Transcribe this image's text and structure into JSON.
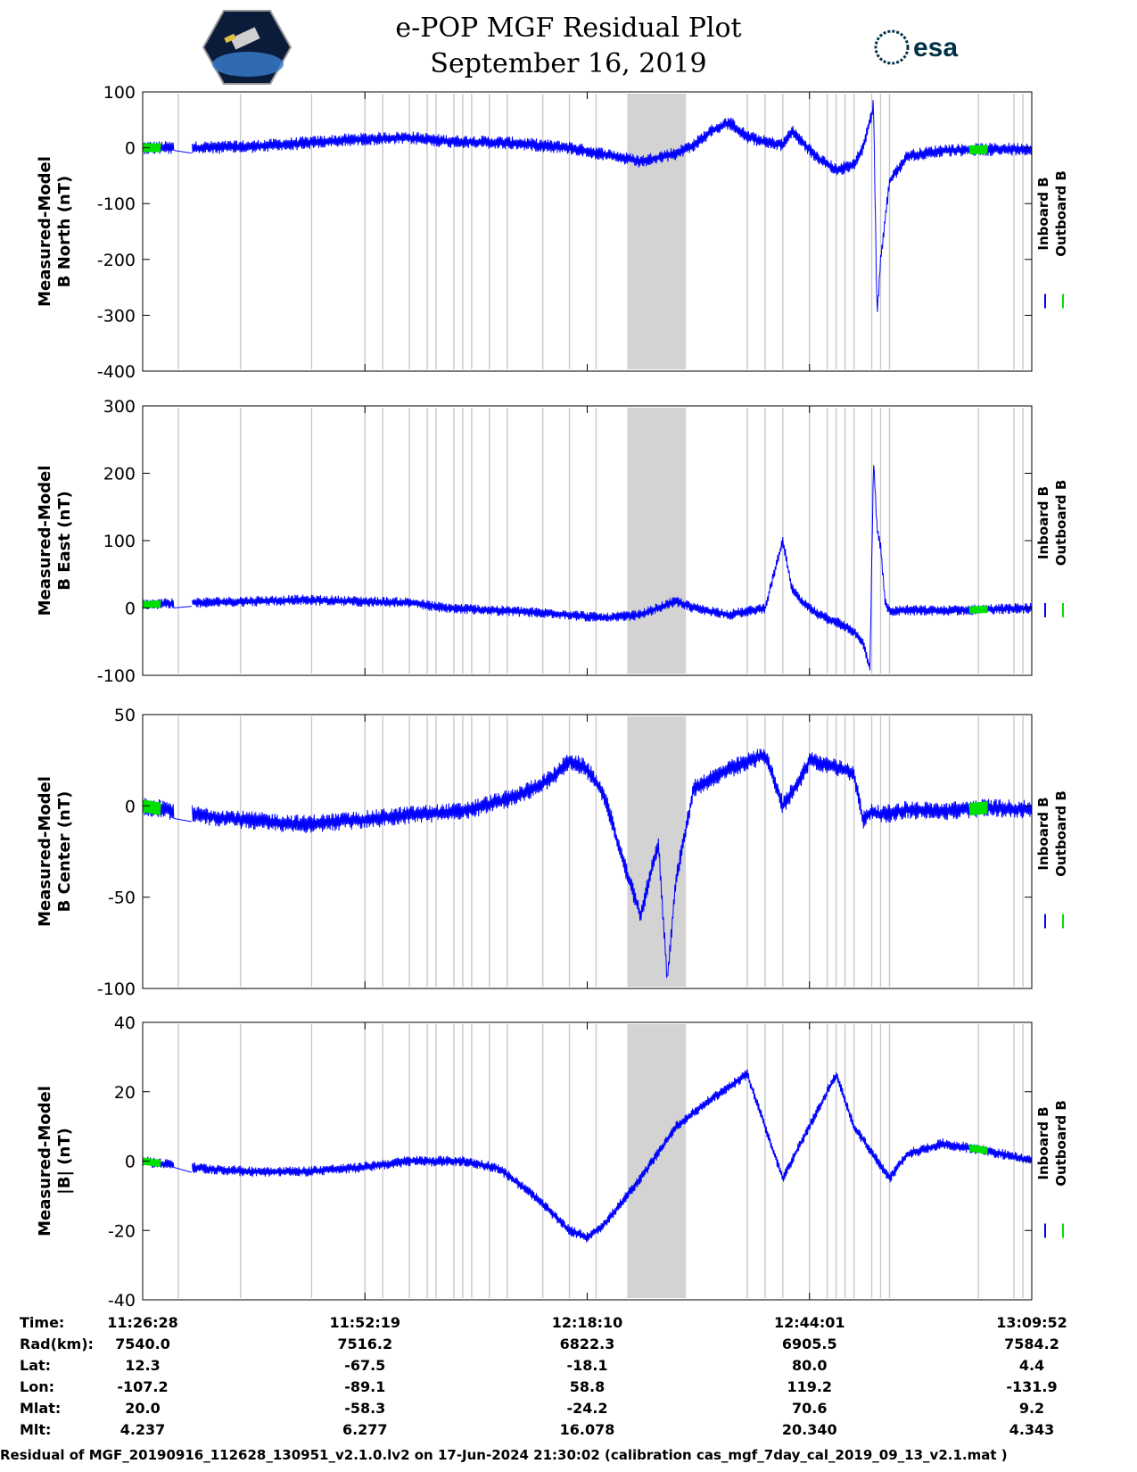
{
  "title": "e-POP MGF Residual Plot",
  "subtitle": "September 16, 2019",
  "logos": {
    "left": "cassiope-mission-logo",
    "right_text": "esa"
  },
  "legend": {
    "inboard": "Inboard B",
    "outboard": "Outboard B"
  },
  "colors": {
    "inboard": "#0000ff",
    "outboard": "#00e000",
    "shade": "#d3d3d3",
    "gaps": "#c8c8c8"
  },
  "chart_data": [
    {
      "type": "line",
      "ylabel": [
        "Measured-Model",
        "B North (nT)"
      ],
      "ylim": [
        -400,
        100
      ],
      "yticks": [
        100,
        0,
        -100,
        -200,
        -300,
        -400
      ],
      "ytick_labels": [
        "100",
        "0",
        "-100",
        "-200",
        "-300",
        "-400"
      ],
      "series": [
        {
          "name": "Inboard B",
          "color": "#0000ff",
          "x": [
            0,
            0.06,
            0.12,
            0.18,
            0.24,
            0.3,
            0.34,
            0.42,
            0.48,
            0.52,
            0.56,
            0.6,
            0.62,
            0.64,
            0.66,
            0.68,
            0.7,
            0.72,
            0.73,
            0.76,
            0.78,
            0.8,
            0.81,
            0.82,
            0.822,
            0.826,
            0.83,
            0.84,
            0.86,
            0.9,
            0.95,
            1.0
          ],
          "y": [
            0,
            0,
            2,
            8,
            15,
            18,
            12,
            8,
            0,
            -12,
            -25,
            -10,
            5,
            30,
            45,
            20,
            10,
            5,
            30,
            -20,
            -40,
            -30,
            0,
            60,
            80,
            -300,
            -200,
            -60,
            -15,
            -5,
            -3,
            -2
          ],
          "band": 10
        }
      ]
    },
    {
      "type": "line",
      "ylabel": [
        "Measured-Model",
        "B East (nT)"
      ],
      "ylim": [
        -100,
        300
      ],
      "yticks": [
        300,
        200,
        100,
        0,
        -100
      ],
      "ytick_labels": [
        "300",
        "200",
        "100",
        "0",
        "-100"
      ],
      "series": [
        {
          "name": "Inboard B",
          "color": "#0000ff",
          "x": [
            0,
            0.06,
            0.12,
            0.18,
            0.24,
            0.3,
            0.34,
            0.42,
            0.48,
            0.52,
            0.56,
            0.6,
            0.62,
            0.64,
            0.66,
            0.68,
            0.7,
            0.72,
            0.73,
            0.74,
            0.76,
            0.78,
            0.8,
            0.81,
            0.818,
            0.822,
            0.826,
            0.83,
            0.835,
            0.84,
            0.86,
            0.9,
            0.95,
            1.0
          ],
          "y": [
            5,
            8,
            10,
            12,
            10,
            8,
            0,
            -5,
            -10,
            -15,
            -10,
            10,
            0,
            -5,
            -10,
            -5,
            0,
            100,
            30,
            10,
            -10,
            -20,
            -35,
            -50,
            -90,
            220,
            120,
            90,
            10,
            -5,
            -3,
            -4,
            -2,
            0
          ],
          "band": 8
        }
      ]
    },
    {
      "type": "line",
      "ylabel": [
        "Measured-Model",
        "B Center (nT)"
      ],
      "ylim": [
        -100,
        50
      ],
      "yticks": [
        50,
        0,
        -50,
        -100
      ],
      "ytick_labels": [
        "50",
        "0",
        "-50",
        "-100"
      ],
      "series": [
        {
          "name": "Inboard B",
          "color": "#0000ff",
          "x": [
            0,
            0.06,
            0.12,
            0.18,
            0.24,
            0.3,
            0.36,
            0.42,
            0.46,
            0.48,
            0.5,
            0.52,
            0.54,
            0.56,
            0.58,
            0.59,
            0.6,
            0.62,
            0.66,
            0.7,
            0.72,
            0.74,
            0.75,
            0.8,
            0.81,
            0.82,
            0.83,
            0.86,
            0.9,
            0.95,
            1.0
          ],
          "y": [
            0,
            -5,
            -8,
            -10,
            -8,
            -5,
            -3,
            5,
            15,
            25,
            20,
            5,
            -30,
            -60,
            -20,
            -95,
            -40,
            10,
            20,
            28,
            0,
            15,
            25,
            18,
            -8,
            -3,
            -5,
            -2,
            -3,
            -1,
            -2
          ],
          "band": 14
        }
      ]
    },
    {
      "type": "line",
      "ylabel": [
        "Measured-Model",
        "|B| (nT)"
      ],
      "ylim": [
        -40,
        40
      ],
      "yticks": [
        40,
        20,
        0,
        -20,
        -40
      ],
      "ytick_labels": [
        "40",
        "20",
        "0",
        "-20",
        "-40"
      ],
      "series": [
        {
          "name": "Inboard B",
          "color": "#0000ff",
          "x": [
            0,
            0.06,
            0.12,
            0.18,
            0.24,
            0.3,
            0.36,
            0.4,
            0.44,
            0.48,
            0.5,
            0.52,
            0.56,
            0.6,
            0.64,
            0.68,
            0.72,
            0.74,
            0.76,
            0.78,
            0.8,
            0.84,
            0.86,
            0.9,
            0.95,
            1.0
          ],
          "y": [
            0,
            -2,
            -3,
            -3,
            -2,
            0,
            0,
            -2,
            -10,
            -20,
            -22,
            -18,
            -5,
            10,
            18,
            25,
            -5,
            5,
            15,
            25,
            10,
            -5,
            2,
            5,
            3,
            0
          ],
          "band": 8
        }
      ]
    }
  ],
  "gap_lines_frac": [
    0.04,
    0.11,
    0.19,
    0.25,
    0.27,
    0.3,
    0.32,
    0.33,
    0.35,
    0.36,
    0.37,
    0.39,
    0.41,
    0.45,
    0.48,
    0.51,
    0.56,
    0.68,
    0.7,
    0.72,
    0.75,
    0.77,
    0.78,
    0.79,
    0.8,
    0.82,
    0.83,
    0.84,
    0.94,
    0.98,
    0.99
  ],
  "shaded_region_frac": [
    0.545,
    0.611
  ],
  "xticks_frac": [
    0,
    0.25,
    0.5,
    0.75,
    1.0
  ],
  "table": {
    "row_labels": [
      "Time:",
      "Rad(km):",
      "Lat:",
      "Lon:",
      "Mlat:",
      "Mlt:"
    ],
    "columns": [
      [
        "11:26:28",
        "7540.0",
        "12.3",
        "-107.2",
        "20.0",
        "4.237"
      ],
      [
        "11:52:19",
        "7516.2",
        "-67.5",
        "-89.1",
        "-58.3",
        "6.277"
      ],
      [
        "12:18:10",
        "6822.3",
        "-18.1",
        "58.8",
        "-24.2",
        "16.078"
      ],
      [
        "12:44:01",
        "6905.5",
        "80.0",
        "119.2",
        "70.6",
        "20.340"
      ],
      [
        "13:09:52",
        "7584.2",
        "4.4",
        "-131.9",
        "9.2",
        "4.343"
      ]
    ]
  },
  "footer": "Residual of MGF_20190916_112628_130951_v2.1.0.lv2 on 17-Jun-2024 21:30:02 (calibration cas_mgf_7day_cal_2019_09_13_v2.1.mat )"
}
